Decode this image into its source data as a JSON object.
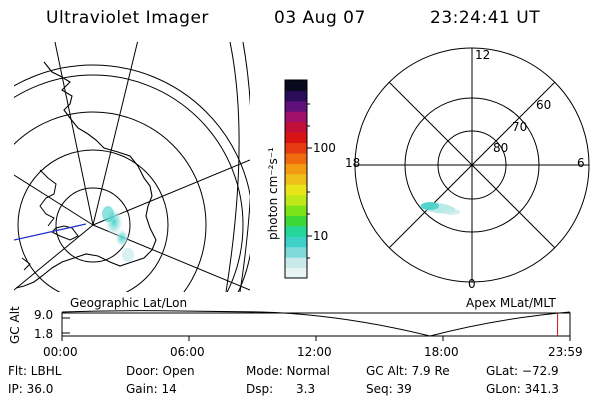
{
  "header": {
    "title": "Ultraviolet Imager",
    "date": "03 Aug 07",
    "time": "23:24:41  UT"
  },
  "left_map": {
    "label": "Geographic Lat/Lon"
  },
  "right_map": {
    "label": "Apex  MLat/MLT",
    "mlt_labels": [
      "12",
      "18",
      "6",
      "0"
    ],
    "lat_labels": [
      "60",
      "70",
      "80"
    ]
  },
  "colorbar": {
    "unit_label": "photon cm⁻²s⁻¹",
    "ticks": [
      "100",
      "10"
    ],
    "colors": [
      "#e8f4f4",
      "#c8eaea",
      "#7fdada",
      "#3fd0c8",
      "#25d89a",
      "#3cd83a",
      "#7ce21a",
      "#bfe81a",
      "#e8e61a",
      "#f0c01a",
      "#f29a12",
      "#f06a0e",
      "#e83a12",
      "#d81414",
      "#c0103a",
      "#a0106a",
      "#60107a",
      "#2a0c58",
      "#0a0a1e"
    ]
  },
  "alt_plot": {
    "ylabel": "GC Alt",
    "y_ticks": [
      "9.0",
      "1.8"
    ],
    "x_ticks": [
      "00:00",
      "06:00",
      "12:00",
      "18:00",
      "23:59"
    ],
    "marker_time": "23:24",
    "marker_color": "#d01010"
  },
  "info": {
    "row1": {
      "filter": "Flt: LBHL",
      "door": "Door: Open",
      "mode": "Mode: Normal",
      "gc_alt": "GC Alt: 7.9 Re",
      "glat": "GLat: −72.9"
    },
    "row2": {
      "ip": "IP: 36.0",
      "gain": "Gain: 14",
      "dsp": "Dsp:      3.3",
      "seq": "Seq: 39",
      "glon": "GLon: 341.3"
    }
  }
}
